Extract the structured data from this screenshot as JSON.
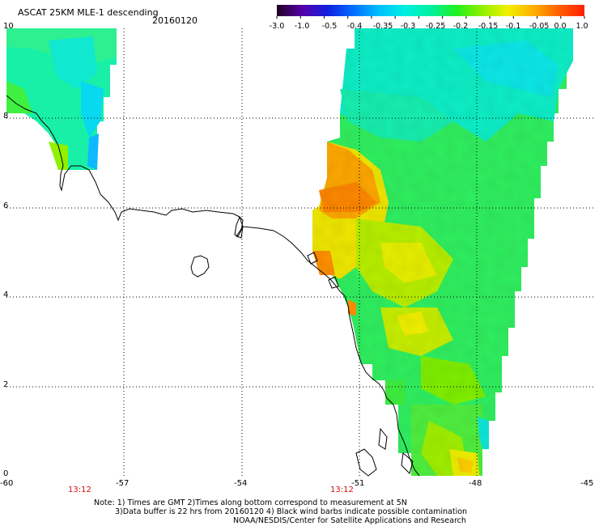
{
  "title": "ASCAT 25KM MLE-1 descending",
  "date": "20160120",
  "colorbar": {
    "labels": [
      "-3.0",
      "-1.0",
      "-0.5",
      "-0.4",
      "-0.35",
      "-0.3",
      "-0.25",
      "-0.2",
      "-0.15",
      "-0.1",
      "-0.05",
      "0.0",
      "1.0"
    ],
    "colors": [
      "#220022",
      "#5500aa",
      "#1020e0",
      "#0070ff",
      "#00c0ff",
      "#00f0e0",
      "#00f0a0",
      "#20f020",
      "#90f000",
      "#f0f000",
      "#ffb000",
      "#ff6000",
      "#ff2000"
    ]
  },
  "latitude_labels": [
    "10",
    "8",
    "6",
    "4",
    "2",
    "0"
  ],
  "longitude_labels": [
    "-60",
    "-57",
    "-54",
    "-51",
    "-48",
    "-45"
  ],
  "pass_times": [
    "13:12",
    "13:12"
  ],
  "notes": [
    "Note: 1) Times are GMT 2)Times along bottom correspond to measurement at 5N",
    "3)Data buffer is 22 hrs from 20160120 4) Black wind barbs indicate possible contamination",
    "NOAA/NESDIS/Center for Satellite Applications and Research"
  ]
}
